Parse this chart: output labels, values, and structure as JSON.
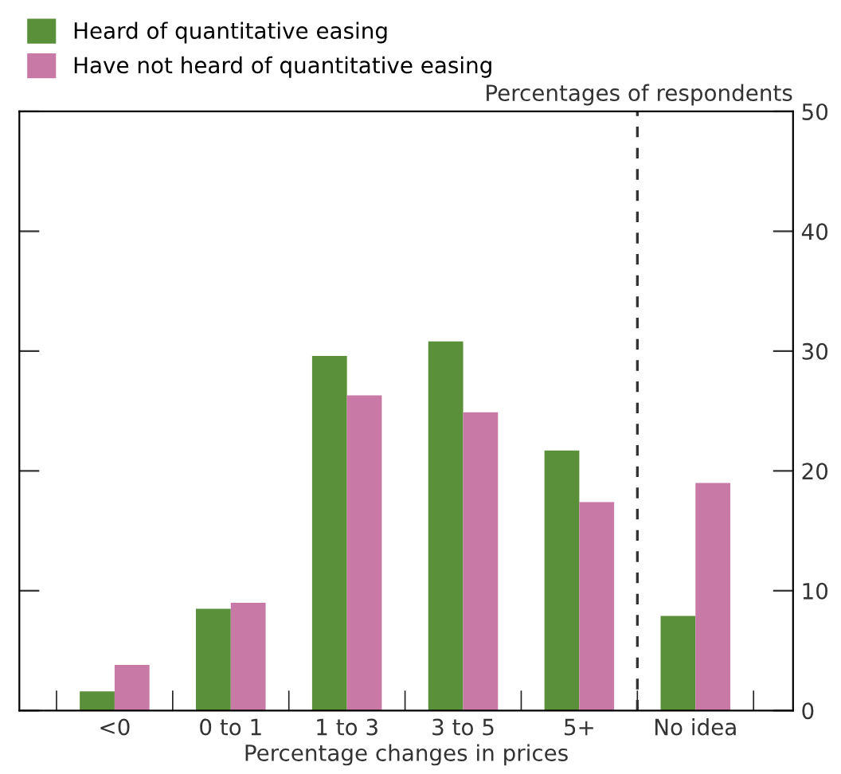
{
  "chart_data": {
    "type": "bar",
    "categories": [
      "<0",
      "0 to 1",
      "1 to 3",
      "3 to 5",
      "5+",
      "No idea"
    ],
    "series": [
      {
        "name": "Heard of quantitative easing",
        "color": "#5a9039",
        "values": [
          1.6,
          8.5,
          29.6,
          30.8,
          21.7,
          7.9
        ]
      },
      {
        "name": "Have not heard of quantitative easing",
        "color": "#c879a5",
        "values": [
          3.8,
          9.0,
          26.3,
          24.9,
          17.4,
          19.0
        ]
      }
    ],
    "xlabel": "Percentage changes in prices",
    "ylabel": "Percentages of respondents",
    "ylim": [
      0,
      50
    ],
    "yticks": [
      0,
      10,
      20,
      30,
      40,
      50
    ],
    "tick_labels": "y",
    "grid": false,
    "legend": "top left"
  }
}
